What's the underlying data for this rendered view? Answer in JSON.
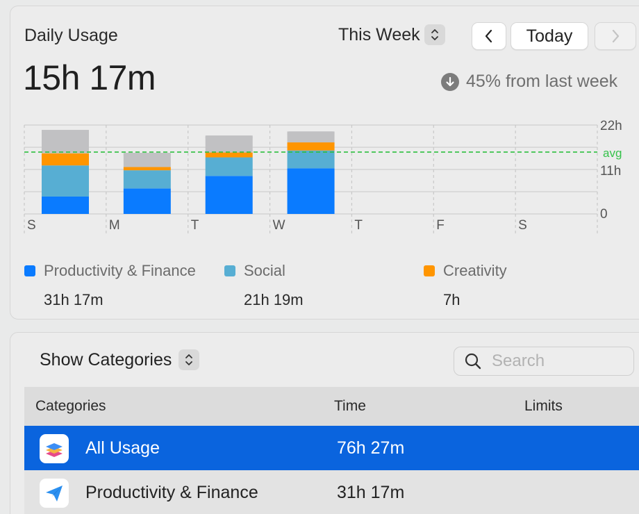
{
  "usage": {
    "title": "Daily Usage",
    "total": "15h 17m",
    "period_selector": "This Week",
    "today_button": "Today",
    "change_text": "45% from last week"
  },
  "chart_data": {
    "type": "bar",
    "stacked": true,
    "categories": [
      "S",
      "M",
      "T",
      "W",
      "T",
      "F",
      "S"
    ],
    "y_ticks": [
      "22h",
      "11h",
      "0"
    ],
    "ylim": [
      0,
      22
    ],
    "avg_label": "avg",
    "avg_value": 15.3,
    "series": [
      {
        "name": "Productivity & Finance",
        "color": "#0a7bff",
        "values": [
          4.3,
          6.3,
          9.4,
          11.3,
          0,
          0,
          0
        ]
      },
      {
        "name": "Social",
        "color": "#57aed3",
        "values": [
          7.7,
          4.5,
          4.6,
          4.4,
          0,
          0,
          0
        ]
      },
      {
        "name": "Creativity",
        "color": "#ff9500",
        "values": [
          3.0,
          0.8,
          1.2,
          2.0,
          0,
          0,
          0
        ]
      },
      {
        "color": "#c1c1c3",
        "values": [
          5.8,
          3.5,
          4.2,
          2.7,
          0,
          0,
          0
        ]
      }
    ]
  },
  "legend": [
    {
      "name": "Productivity & Finance",
      "value": "31h 17m",
      "color": "#0a7bff"
    },
    {
      "name": "Social",
      "value": "21h 19m",
      "color": "#57aed3"
    },
    {
      "name": "Creativity",
      "value": "7h",
      "color": "#ff9500"
    }
  ],
  "categories_panel": {
    "show_label": "Show Categories",
    "search_placeholder": "Search",
    "headers": {
      "category": "Categories",
      "time": "Time",
      "limits": "Limits"
    },
    "rows": [
      {
        "name": "All Usage",
        "time": "76h 27m",
        "icon": "stack-layers-icon"
      },
      {
        "name": "Productivity & Finance",
        "time": "31h 17m",
        "icon": "paper-plane-icon"
      }
    ]
  }
}
